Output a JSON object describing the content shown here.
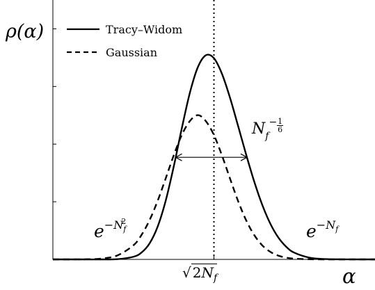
{
  "chart_data": {
    "type": "line",
    "title": "",
    "ylabel": "ρ(α)",
    "xlabel": "α",
    "grid": false,
    "legend_position": "top-left",
    "xlim": [
      -4,
      4
    ],
    "ylim": [
      0,
      0.45
    ],
    "x_ticks": [
      {
        "x": 0,
        "label": "√2N_f"
      }
    ],
    "series": [
      {
        "name": "Tracy–Widom",
        "style": "solid",
        "x": [
          -4.0,
          -3.6,
          -3.2,
          -2.8,
          -2.4,
          -2.0,
          -1.8,
          -1.6,
          -1.4,
          -1.2,
          -1.0,
          -0.8,
          -0.6,
          -0.4,
          -0.2,
          0.0,
          0.2,
          0.4,
          0.6,
          0.8,
          1.0,
          1.2,
          1.4,
          1.6,
          1.8,
          2.0,
          2.4,
          2.8,
          3.2,
          3.6,
          4.0
        ],
        "y": [
          0.0,
          0.0,
          0.0,
          0.0,
          0.0004,
          0.0045,
          0.0118,
          0.0276,
          0.0565,
          0.1013,
          0.1606,
          0.2268,
          0.2884,
          0.3334,
          0.3542,
          0.349,
          0.3218,
          0.2802,
          0.2315,
          0.1818,
          0.1351,
          0.0946,
          0.062,
          0.0379,
          0.0216,
          0.0115,
          0.0026,
          0.0005,
          0.0001,
          0.0,
          0.0
        ]
      },
      {
        "name": "Gaussian",
        "style": "dashed",
        "x": [
          -4.0,
          -3.6,
          -3.2,
          -2.8,
          -2.4,
          -2.0,
          -1.8,
          -1.6,
          -1.4,
          -1.2,
          -1.0,
          -0.8,
          -0.6,
          -0.4,
          -0.2,
          0.0,
          0.2,
          0.4,
          0.6,
          0.8,
          1.0,
          1.2,
          1.4,
          1.6,
          1.8,
          2.0,
          2.4,
          2.8,
          3.2,
          3.6,
          4.0
        ],
        "y": [
          0.0,
          0.0,
          0.0002,
          0.0014,
          0.0068,
          0.0244,
          0.0423,
          0.0679,
          0.1012,
          0.1401,
          0.1802,
          0.2156,
          0.2398,
          0.2503,
          0.2398,
          0.2156,
          0.1802,
          0.1401,
          0.1012,
          0.0679,
          0.0423,
          0.0244,
          0.0131,
          0.0065,
          0.003,
          0.0013,
          0.0002,
          0.0,
          0.0,
          0.0,
          0.0
        ]
      }
    ],
    "annotations": {
      "width_label": "N_f^{-1/6}",
      "left_tail_label": "e^{-N_f^2}",
      "right_tail_label": "e^{-N_f}"
    }
  }
}
